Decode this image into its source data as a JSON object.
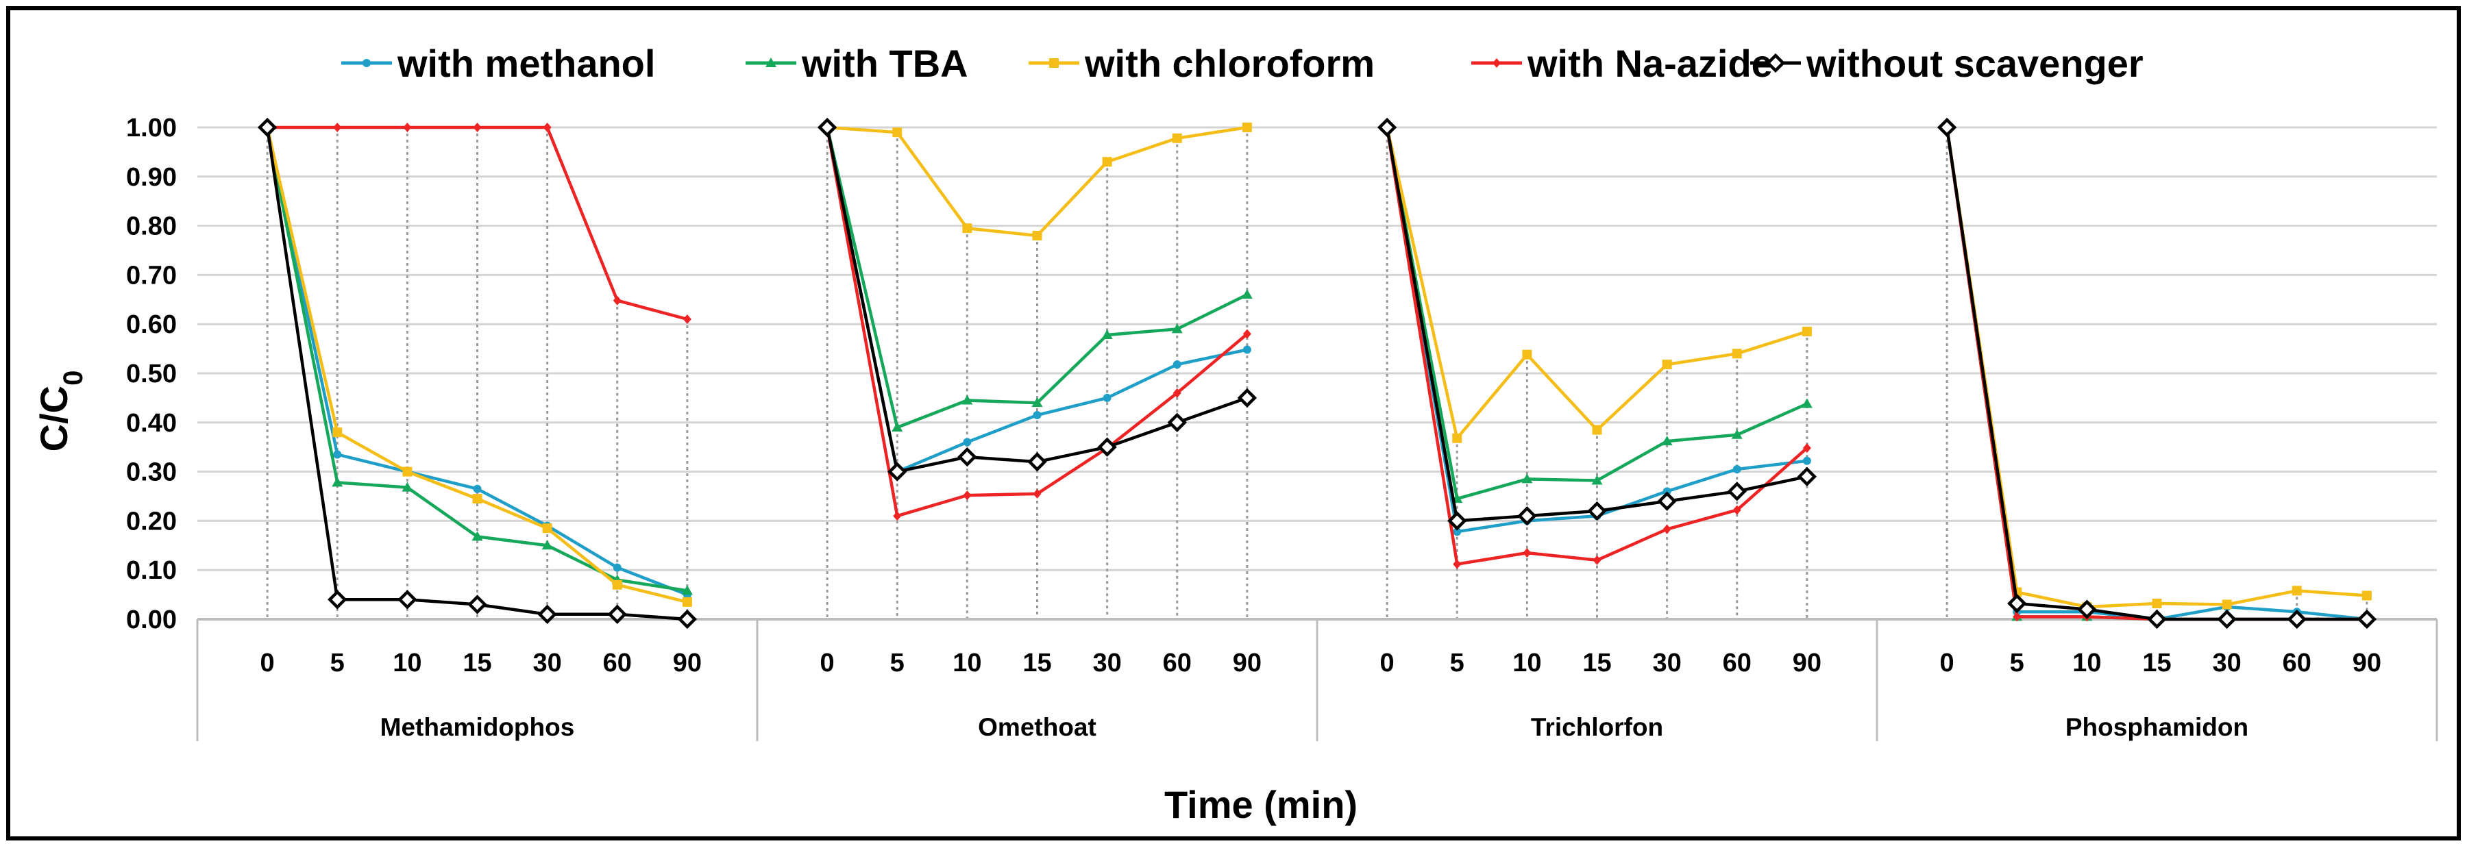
{
  "chart_data": {
    "type": "line",
    "ylabel": "C/C",
    "ylabel_sub": "0",
    "xlabel": "Time (min)",
    "ylim": [
      0,
      1
    ],
    "y_ticks": [
      "1.00",
      "0.90",
      "0.80",
      "0.70",
      "0.60",
      "0.50",
      "0.40",
      "0.30",
      "0.20",
      "0.10",
      "0.00"
    ],
    "x_ticks": [
      "0",
      "5",
      "10",
      "15",
      "30",
      "60",
      "90"
    ],
    "legend": [
      "with methanol",
      "with TBA",
      "with chloroform",
      "with Na-azide",
      "without scavenger"
    ],
    "colors": {
      "with methanol": "#1f9fc8",
      "with TBA": "#16a85a",
      "with chloroform": "#f5bd18",
      "with Na-azide": "#ee2424",
      "without scavenger": "#000000"
    },
    "groups": [
      {
        "name": "Methamidophos",
        "series": [
          {
            "name": "with methanol",
            "values": [
              1.0,
              0.335,
              0.3,
              0.265,
              0.19,
              0.105,
              0.05
            ]
          },
          {
            "name": "with TBA",
            "values": [
              1.0,
              0.278,
              0.268,
              0.168,
              0.15,
              0.08,
              0.058
            ]
          },
          {
            "name": "with chloroform",
            "values": [
              1.0,
              0.38,
              0.3,
              0.245,
              0.185,
              0.07,
              0.035
            ]
          },
          {
            "name": "with Na-azide",
            "values": [
              1.0,
              1.0,
              1.0,
              1.0,
              1.0,
              0.648,
              0.61
            ]
          },
          {
            "name": "without scavenger",
            "values": [
              1.0,
              0.04,
              0.04,
              0.03,
              0.01,
              0.01,
              0.0
            ]
          }
        ]
      },
      {
        "name": "Omethoat",
        "series": [
          {
            "name": "with methanol",
            "values": [
              1.0,
              0.3,
              0.36,
              0.415,
              0.45,
              0.518,
              0.548
            ]
          },
          {
            "name": "with TBA",
            "values": [
              1.0,
              0.39,
              0.445,
              0.44,
              0.578,
              0.59,
              0.66
            ]
          },
          {
            "name": "with chloroform",
            "values": [
              1.0,
              0.99,
              0.795,
              0.78,
              0.93,
              0.978,
              1.0
            ]
          },
          {
            "name": "with Na-azide",
            "values": [
              1.0,
              0.21,
              0.252,
              0.255,
              0.348,
              0.46,
              0.58
            ]
          },
          {
            "name": "without scavenger",
            "values": [
              1.0,
              0.3,
              0.33,
              0.32,
              0.35,
              0.4,
              0.45
            ]
          }
        ]
      },
      {
        "name": "Trichlorfon",
        "series": [
          {
            "name": "with methanol",
            "values": [
              1.0,
              0.178,
              0.2,
              0.21,
              0.26,
              0.305,
              0.322
            ]
          },
          {
            "name": "with TBA",
            "values": [
              1.0,
              0.245,
              0.285,
              0.282,
              0.362,
              0.375,
              0.438
            ]
          },
          {
            "name": "with chloroform",
            "values": [
              1.0,
              0.368,
              0.538,
              0.385,
              0.518,
              0.54,
              0.585
            ]
          },
          {
            "name": "with Na-azide",
            "values": [
              1.0,
              0.112,
              0.135,
              0.12,
              0.183,
              0.222,
              0.348
            ]
          },
          {
            "name": "without scavenger",
            "values": [
              1.0,
              0.2,
              0.21,
              0.22,
              0.24,
              0.26,
              0.29
            ]
          }
        ]
      },
      {
        "name": "Phosphamidon",
        "series": [
          {
            "name": "with methanol",
            "values": [
              1.0,
              0.015,
              0.015,
              0.0,
              0.025,
              0.015,
              0.0
            ]
          },
          {
            "name": "with TBA",
            "values": [
              1.0,
              0.005,
              0.005,
              0.0,
              0.0,
              0.0,
              0.0
            ]
          },
          {
            "name": "with chloroform",
            "values": [
              1.0,
              0.055,
              0.025,
              0.032,
              0.03,
              0.058,
              0.048
            ]
          },
          {
            "name": "with Na-azide",
            "values": [
              1.0,
              0.005,
              0.005,
              0.0,
              0.0,
              0.0,
              0.0
            ]
          },
          {
            "name": "without scavenger",
            "values": [
              1.0,
              0.032,
              0.02,
              0.0,
              0.0,
              0.0,
              0.0
            ]
          }
        ]
      }
    ]
  }
}
